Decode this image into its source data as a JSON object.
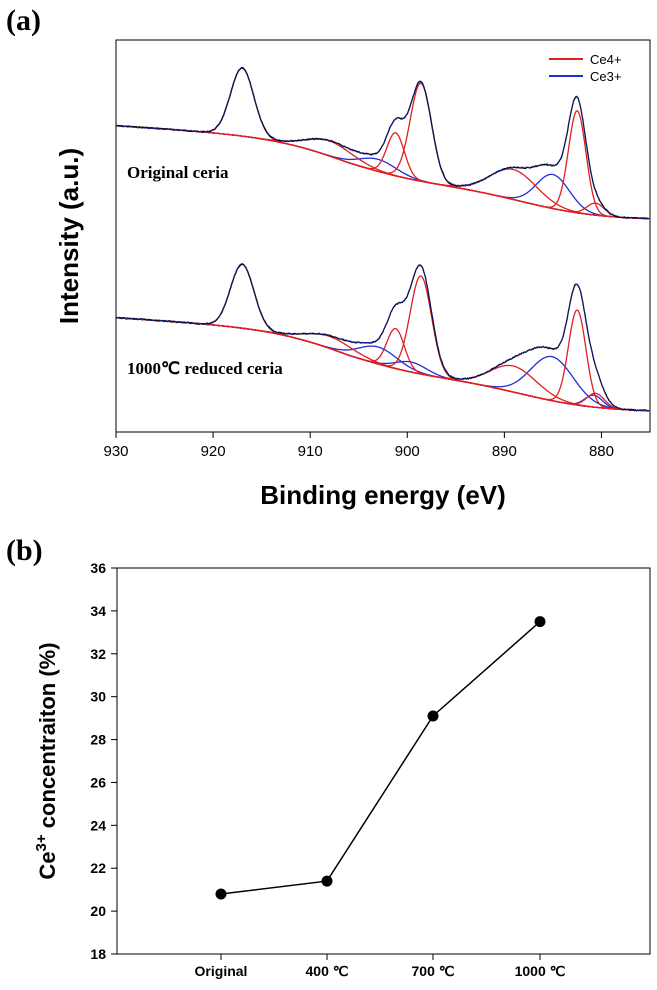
{
  "chart_data": [
    {
      "panel": "(a)",
      "type": "line",
      "xlabel": "Binding energy (eV)",
      "ylabel": "Intensity (a.u.)",
      "xlim": [
        930,
        875
      ],
      "x_ticks": [
        "930",
        "920",
        "910",
        "900",
        "890",
        "880"
      ],
      "legend": {
        "position": "top-right",
        "entries": [
          "Ce4+",
          "Ce3+"
        ]
      },
      "colors": {
        "envelope": "#000000",
        "Ce4+": "#e02020",
        "Ce3+": "#1f2fd6"
      },
      "annotations": [
        "Original ceria",
        "1000℃ reduced ceria"
      ],
      "spectra": [
        {
          "label": "Original ceria",
          "Ce4+_peaks_eV": [
            917.0,
            908.0,
            901.0,
            898.5,
            889.0,
            882.5,
            880.5
          ],
          "Ce3+_peaks_eV": [
            903.0,
            885.0
          ]
        },
        {
          "label": "1000℃ reduced ceria",
          "Ce4+_peaks_eV": [
            917.0,
            908.0,
            901.0,
            898.5,
            889.0,
            882.5,
            880.5
          ],
          "Ce3+_peaks_eV": [
            903.0,
            899.5,
            885.0,
            881.0
          ]
        }
      ]
    },
    {
      "panel": "(b)",
      "type": "line",
      "ylabel_base": "Ce",
      "ylabel_sup": "3+",
      "ylabel_rest": " concentraiton (%)",
      "categories": [
        "Original",
        "400 ℃",
        "700 ℃",
        "1000 ℃"
      ],
      "values": [
        20.8,
        21.4,
        29.1,
        33.5
      ],
      "ylim": [
        18,
        36
      ],
      "y_ticks": [
        "18",
        "20",
        "22",
        "24",
        "26",
        "28",
        "30",
        "32",
        "34",
        "36"
      ]
    }
  ]
}
